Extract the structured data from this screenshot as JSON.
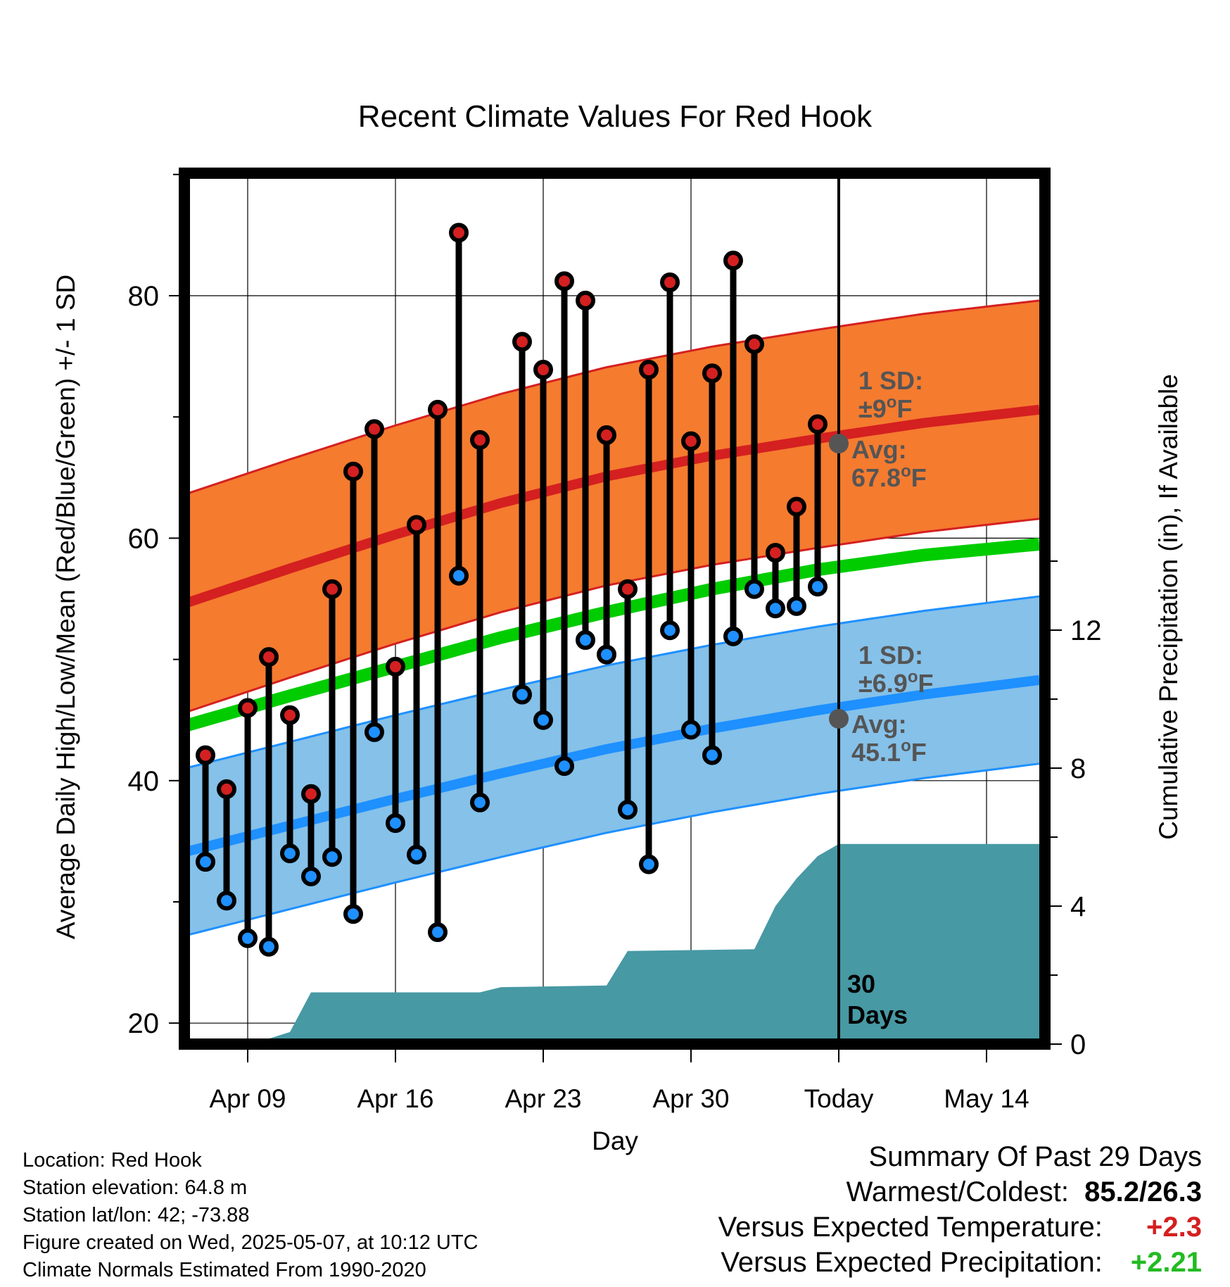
{
  "chart_data": {
    "type": "line",
    "title": "Recent Climate Values For Red Hook",
    "xlabel": "Day",
    "ylabel": "Average Daily High/Low/Mean (Red/Blue/Green) +/- 1 SD",
    "y2label": "Cumulative Precipitation (in), If Available",
    "ylim": [
      18.5,
      90
    ],
    "y2lim": [
      0,
      18
    ],
    "y_ticks": [
      "20",
      "40",
      "60",
      "80"
    ],
    "y2_ticks": [
      "0",
      "4",
      "8",
      "12"
    ],
    "x_ticks": [
      {
        "day": 9,
        "label": "Apr 09"
      },
      {
        "day": 16,
        "label": "Apr 16"
      },
      {
        "day": 23,
        "label": "Apr 23"
      },
      {
        "day": 30,
        "label": "Apr 30"
      },
      {
        "day": 37,
        "label": "Today"
      },
      {
        "day": 44,
        "label": "May 14"
      }
    ],
    "xlim": [
      6,
      46.5
    ],
    "today_day": 37,
    "days_label": "30\nDays",
    "daily": {
      "days": [
        7,
        8,
        9,
        10,
        11,
        12,
        13,
        14,
        15,
        16,
        17,
        18,
        19,
        20,
        22,
        23,
        24,
        25,
        26,
        27,
        28,
        29,
        30,
        31,
        32,
        33,
        34,
        35,
        36
      ],
      "highs": [
        42.1,
        39.3,
        46.0,
        50.2,
        45.4,
        38.9,
        55.8,
        65.5,
        69.0,
        49.4,
        61.1,
        70.6,
        85.2,
        68.1,
        76.2,
        73.9,
        81.2,
        79.6,
        68.5,
        55.8,
        73.9,
        81.1,
        68.0,
        73.6,
        82.9,
        76.0,
        58.8,
        62.6,
        69.4
      ],
      "lows": [
        33.3,
        30.1,
        27.0,
        26.3,
        34.0,
        32.1,
        33.7,
        29.0,
        44.0,
        36.5,
        33.9,
        27.5,
        56.9,
        38.2,
        47.1,
        45.0,
        41.2,
        51.6,
        50.4,
        37.6,
        33.1,
        52.4,
        44.2,
        42.1,
        51.9,
        55.8,
        54.2,
        54.4,
        56.0
      ]
    },
    "normals": {
      "days": [
        6,
        11,
        16,
        21,
        26,
        31,
        36,
        41,
        46.5
      ],
      "mean_high": [
        54.6,
        57.5,
        60.3,
        62.9,
        65.1,
        66.8,
        68.2,
        69.5,
        70.6
      ],
      "mean_low": [
        34.1,
        36.3,
        38.5,
        40.6,
        42.6,
        44.3,
        45.8,
        47.1,
        48.3
      ],
      "mean": [
        44.5,
        47.0,
        49.4,
        51.8,
        53.9,
        55.8,
        57.4,
        58.6,
        59.5
      ],
      "high_sd": 9.0,
      "low_sd": 6.9
    },
    "precip_cumulative": {
      "days": [
        6,
        9,
        9.7,
        11,
        12,
        20,
        21,
        26,
        27,
        33,
        34,
        35,
        36,
        37,
        46.5
      ],
      "values": [
        0,
        0,
        0.1,
        0.35,
        1.5,
        1.5,
        1.65,
        1.7,
        2.7,
        2.75,
        4.0,
        4.8,
        5.45,
        5.8,
        5.8
      ]
    },
    "annotations": {
      "high_sd": [
        "1 SD:",
        "±9",
        "°",
        "F"
      ],
      "high_avg": [
        "Avg:",
        "67.8",
        "°",
        "F"
      ],
      "high_avg_value": 67.8,
      "low_sd": [
        "1 SD:",
        "±6.9",
        "°",
        "F"
      ],
      "low_avg": [
        "Avg:",
        "45.1",
        "°",
        "F"
      ],
      "low_avg_value": 45.1
    },
    "grid": true,
    "colors": {
      "high": "#d42020",
      "low": "#1e90ff",
      "mean": "#00cc00",
      "high_band": "#f57b2f",
      "low_band": "#85c1e9",
      "precip": "#4799a4",
      "annotation": "#555555"
    }
  },
  "info": {
    "location": "Location: Red Hook",
    "elevation": "Station elevation: 64.8 m",
    "latlon": "Station lat/lon: 42; -73.88",
    "created": "Figure created on Wed, 2025-05-07, at 10:12 UTC",
    "normals": "Climate Normals Estimated From 1990-2020"
  },
  "summary": {
    "title": "Summary Of Past 29 Days",
    "warmest_coldest_label": "Warmest/Coldest:",
    "warmest_coldest_value": "85.2/26.3",
    "temp_label": "Versus Expected Temperature:",
    "temp_value": "+2.3",
    "temp_color": "#d42020",
    "precip_label": "Versus Expected Precipitation:",
    "precip_value": "+2.21",
    "precip_color": "#22bb22"
  }
}
